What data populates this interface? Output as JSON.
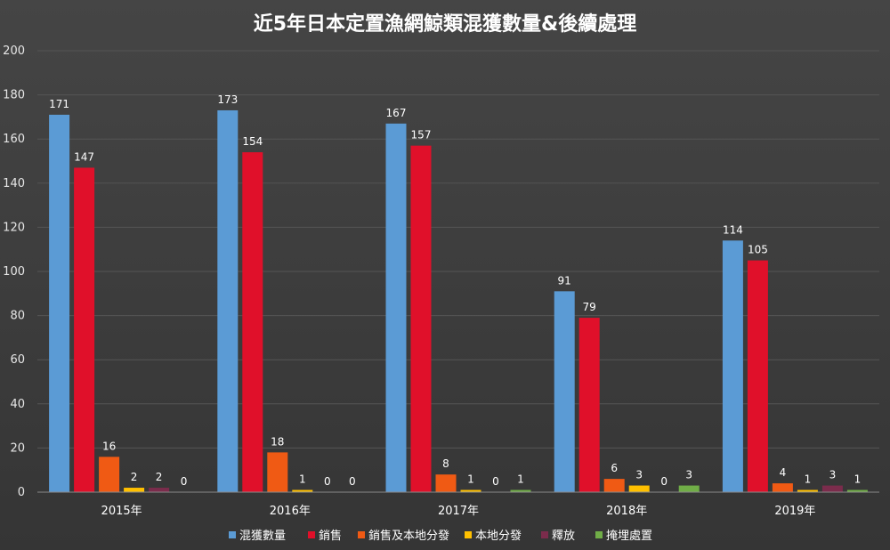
{
  "chart_data": {
    "type": "bar",
    "title": "近5年日本定置漁網鯨類混獲數量&後續處理",
    "categories": [
      "2015年",
      "2016年",
      "2017年",
      "2018年",
      "2019年"
    ],
    "series": [
      {
        "name": "混獲數量",
        "color": "#5b9bd5",
        "values": [
          171,
          173,
          167,
          91,
          114
        ]
      },
      {
        "name": "銷售",
        "color": "#e0102a",
        "values": [
          147,
          154,
          157,
          79,
          105
        ]
      },
      {
        "name": "銷售及本地分發",
        "color": "#f05a14",
        "values": [
          16,
          18,
          8,
          6,
          4
        ]
      },
      {
        "name": "本地分發",
        "color": "#ffc000",
        "values": [
          2,
          1,
          1,
          3,
          1
        ]
      },
      {
        "name": "釋放",
        "color": "#7b2c4c",
        "values": [
          2,
          0,
          0,
          0,
          3
        ]
      },
      {
        "name": "掩埋處置",
        "color": "#70ad47",
        "values": [
          0,
          0,
          1,
          3,
          1
        ]
      }
    ],
    "ylim": [
      0,
      200
    ],
    "yticks": [
      0,
      20,
      40,
      60,
      80,
      100,
      120,
      140,
      160,
      180,
      200
    ],
    "grid": true,
    "legend_position": "bottom"
  }
}
